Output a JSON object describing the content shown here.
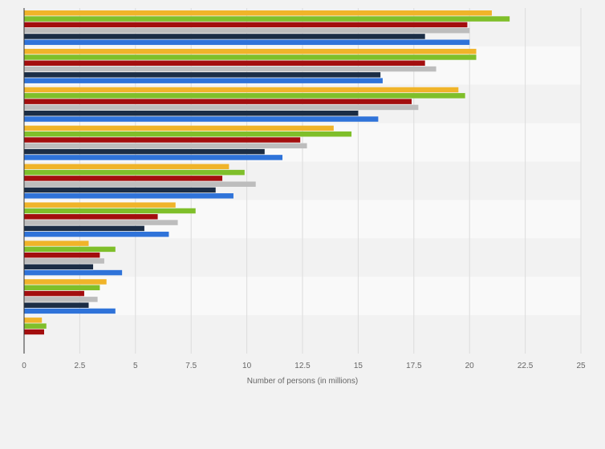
{
  "chart_data": {
    "type": "bar",
    "orientation": "horizontal",
    "title": "",
    "xlabel": "Number of persons (in millions)",
    "ylabel": "",
    "xlim": [
      0,
      25
    ],
    "xticks": [
      "0",
      "2.5",
      "5",
      "7.5",
      "10",
      "12.5",
      "15",
      "17.5",
      "20",
      "22.5",
      "25"
    ],
    "grid": true,
    "legend": "none",
    "series_colors": [
      "#f0b429",
      "#7fbf2a",
      "#a30e0e",
      "#bdbdbd",
      "#1b2d45",
      "#2f73d9"
    ],
    "categories": [
      "",
      "",
      "",
      "",
      "",
      "",
      "",
      "",
      ""
    ],
    "groups": [
      [
        21.0,
        21.8,
        19.9,
        20.0,
        18.0,
        20.0
      ],
      [
        20.3,
        20.3,
        18.0,
        18.5,
        16.0,
        16.1
      ],
      [
        19.5,
        19.8,
        17.4,
        17.7,
        15.0,
        15.9
      ],
      [
        13.9,
        14.7,
        12.4,
        12.7,
        10.8,
        11.6
      ],
      [
        9.2,
        9.9,
        8.9,
        10.4,
        8.6,
        9.4
      ],
      [
        6.8,
        7.7,
        6.0,
        6.9,
        5.4,
        6.5
      ],
      [
        2.9,
        4.1,
        3.4,
        3.6,
        3.1,
        4.4
      ],
      [
        3.7,
        3.4,
        2.7,
        3.3,
        2.9,
        4.1
      ],
      [
        0.8,
        1.0,
        0.9
      ]
    ]
  }
}
